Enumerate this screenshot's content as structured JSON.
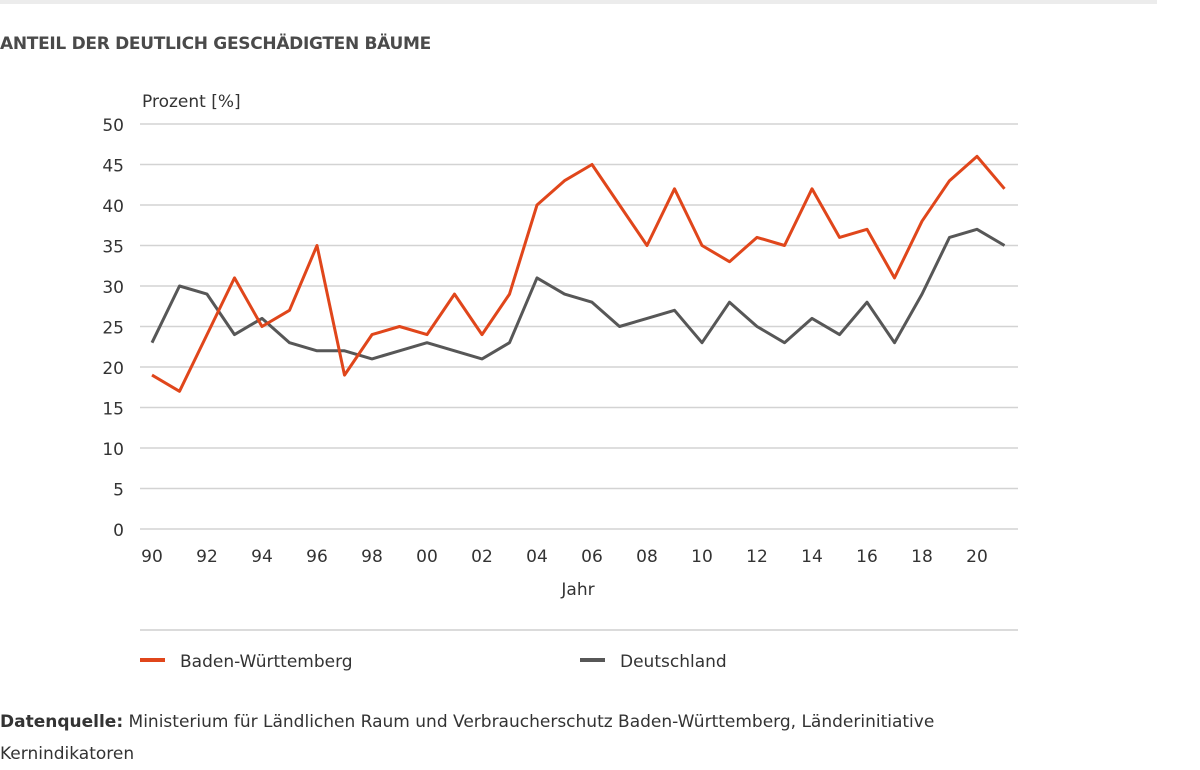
{
  "title": "ANTEIL DER DEUTLICH GESCHÄDIGTEN BÄUME",
  "source": {
    "label": "Datenquelle:",
    "text": " Ministerium für Ländlichen Raum und Verbraucherschutz Baden-Württemberg, Länderinitiative Kernindikatoren"
  },
  "chart_data": {
    "type": "line",
    "title": "ANTEIL DER DEUTLICH GESCHÄDIGTEN BÄUME",
    "xlabel": "Jahr",
    "ylabel": "Prozent [%]",
    "ylim": [
      0,
      50
    ],
    "yticks": [
      0,
      5,
      10,
      15,
      20,
      25,
      30,
      35,
      40,
      45,
      50
    ],
    "grid": true,
    "legend_position": "bottom",
    "x": [
      1990,
      1991,
      1992,
      1993,
      1994,
      1995,
      1996,
      1997,
      1998,
      1999,
      2000,
      2001,
      2002,
      2003,
      2004,
      2005,
      2006,
      2007,
      2008,
      2009,
      2010,
      2011,
      2012,
      2013,
      2014,
      2015,
      2016,
      2017,
      2018,
      2019,
      2020,
      2021
    ],
    "xtick_labels": [
      "90",
      "92",
      "94",
      "96",
      "98",
      "00",
      "02",
      "04",
      "06",
      "08",
      "10",
      "12",
      "14",
      "16",
      "18",
      "20"
    ],
    "series": [
      {
        "name": "Baden-Württemberg",
        "color": "#e0461b",
        "values": [
          19,
          17,
          24,
          31,
          25,
          27,
          35,
          19,
          24,
          25,
          24,
          29,
          24,
          29,
          40,
          43,
          45,
          40,
          35,
          42,
          35,
          33,
          36,
          35,
          42,
          36,
          37,
          31,
          38,
          43,
          46,
          42
        ]
      },
      {
        "name": "Deutschland",
        "color": "#575757",
        "values": [
          23,
          30,
          29,
          24,
          26,
          23,
          22,
          22,
          21,
          22,
          23,
          22,
          21,
          23,
          31,
          29,
          28,
          25,
          26,
          27,
          23,
          28,
          25,
          23,
          26,
          24,
          28,
          23,
          29,
          36,
          37,
          35
        ]
      }
    ]
  }
}
